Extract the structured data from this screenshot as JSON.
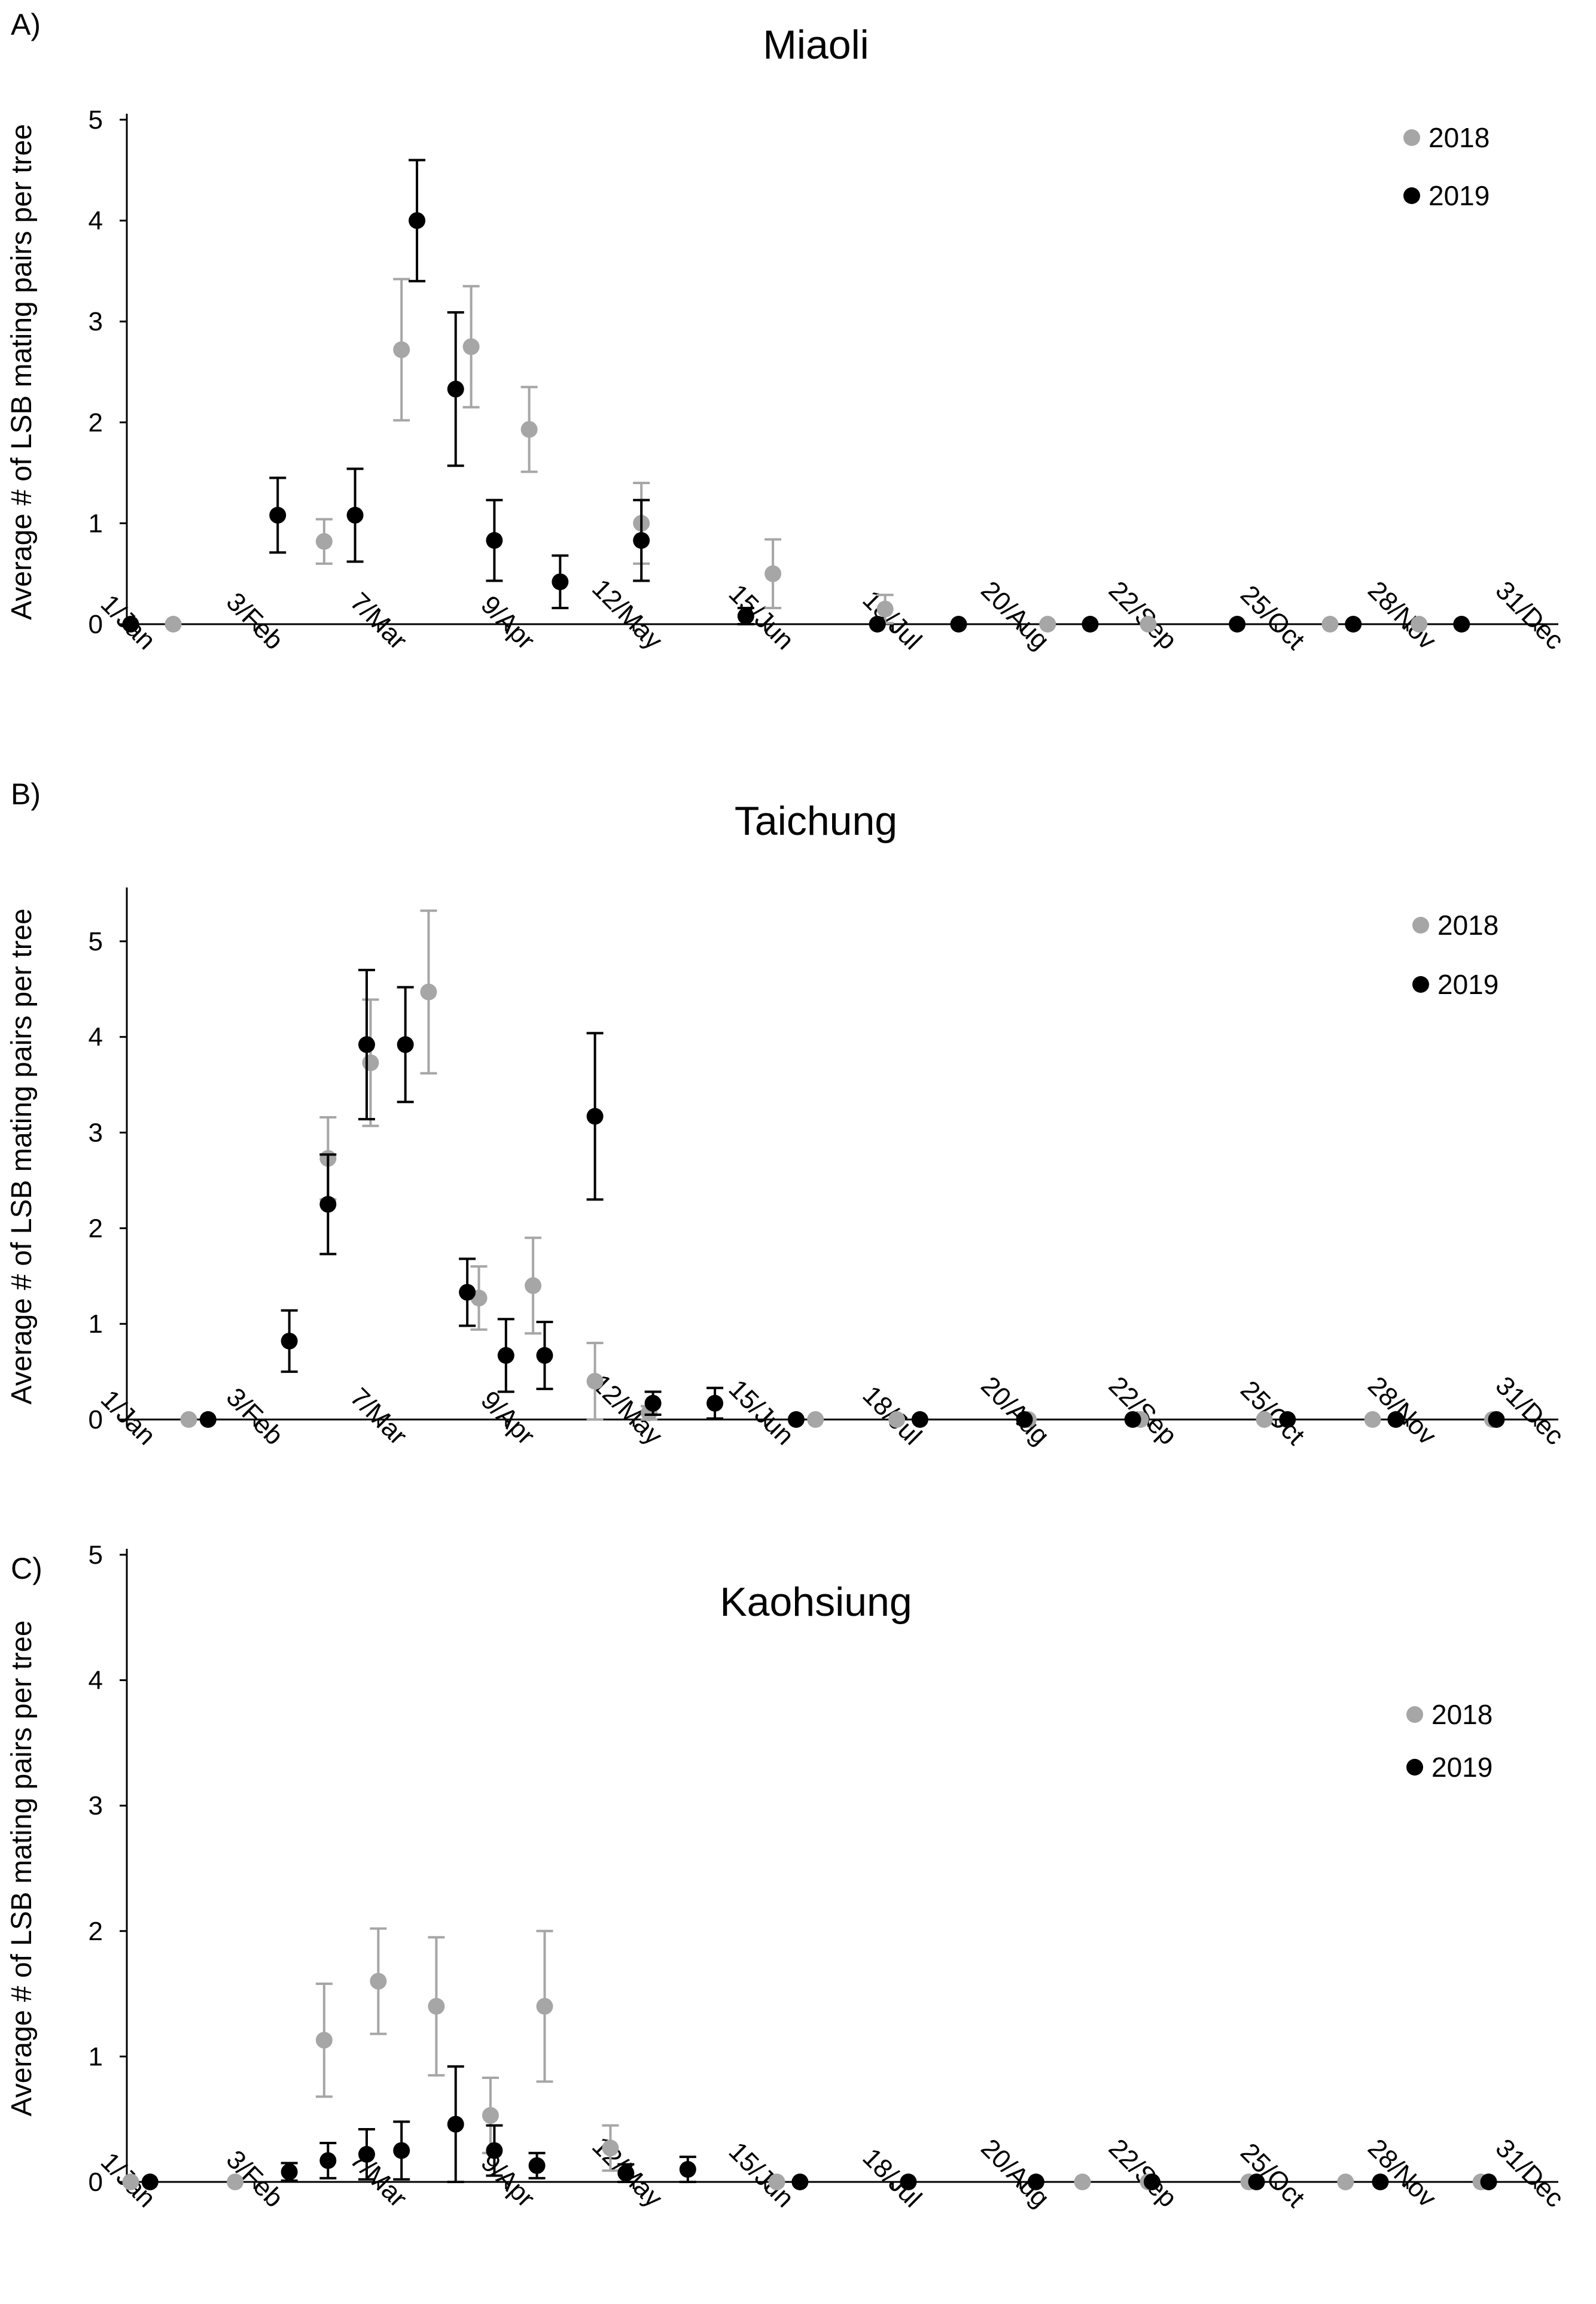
{
  "figure": {
    "colors": {
      "2018": "#a6a6a6",
      "2019": "#000000",
      "axis": "#000000"
    }
  },
  "chart_data": [
    {
      "type": "scatter",
      "panel": "A)",
      "title": "Miaoli",
      "xlabel": "",
      "ylabel": "Average # of LSB mating pairs per tree",
      "xlim": [
        0,
        370
      ],
      "ylim": [
        0,
        5
      ],
      "yticks": [
        0,
        1,
        2,
        3,
        4,
        5
      ],
      "xtick_positions": [
        0,
        33,
        65,
        98,
        131,
        165,
        198,
        231,
        264,
        297,
        331,
        364
      ],
      "xtick_labels": [
        "1/Jan",
        "3/Feb",
        "7/Mar",
        "9/Apr",
        "12/May",
        "15/Jun",
        "18/Jul",
        "20/Aug",
        "22/Sep",
        "25/Oct",
        "28/Nov",
        "31/Dec"
      ],
      "legend": [
        "2018",
        "2019"
      ],
      "legend_position": "top-right",
      "series": [
        {
          "name": "2018",
          "points": [
            {
              "x": 12,
              "y": 0,
              "err": 0
            },
            {
              "x": 51,
              "y": 0.82,
              "err": 0.22
            },
            {
              "x": 71,
              "y": 2.72,
              "err": 0.7
            },
            {
              "x": 89,
              "y": 2.75,
              "err": 0.6
            },
            {
              "x": 104,
              "y": 1.93,
              "err": 0.42
            },
            {
              "x": 133,
              "y": 1.0,
              "err": 0.4
            },
            {
              "x": 167,
              "y": 0.5,
              "err": 0.34
            },
            {
              "x": 196,
              "y": 0.15,
              "err": 0.14
            },
            {
              "x": 238,
              "y": 0,
              "err": 0
            },
            {
              "x": 264,
              "y": 0,
              "err": 0
            },
            {
              "x": 311,
              "y": 0,
              "err": 0
            },
            {
              "x": 334,
              "y": 0,
              "err": 0
            }
          ]
        },
        {
          "name": "2019",
          "points": [
            {
              "x": 1,
              "y": 0,
              "err": 0
            },
            {
              "x": 39,
              "y": 1.08,
              "err": 0.37
            },
            {
              "x": 59,
              "y": 1.08,
              "err": 0.46
            },
            {
              "x": 75,
              "y": 4.0,
              "err": 0.6
            },
            {
              "x": 85,
              "y": 2.33,
              "err": 0.76
            },
            {
              "x": 95,
              "y": 0.83,
              "err": 0.4
            },
            {
              "x": 112,
              "y": 0.42,
              "err": 0.26
            },
            {
              "x": 133,
              "y": 0.83,
              "err": 0.4
            },
            {
              "x": 160,
              "y": 0.08,
              "err": 0.08
            },
            {
              "x": 194,
              "y": 0,
              "err": 0
            },
            {
              "x": 215,
              "y": 0,
              "err": 0
            },
            {
              "x": 249,
              "y": 0,
              "err": 0
            },
            {
              "x": 287,
              "y": 0,
              "err": 0
            },
            {
              "x": 317,
              "y": 0,
              "err": 0
            },
            {
              "x": 345,
              "y": 0,
              "err": 0
            }
          ]
        }
      ]
    },
    {
      "type": "scatter",
      "panel": "B)",
      "title": "Taichung",
      "xlabel": "",
      "ylabel": "Average # of LSB mating pairs per tree",
      "xlim": [
        0,
        370
      ],
      "ylim": [
        0,
        5.5
      ],
      "yticks": [
        0,
        1,
        2,
        3,
        4,
        5
      ],
      "xtick_positions": [
        0,
        33,
        65,
        98,
        131,
        165,
        198,
        231,
        264,
        297,
        331,
        364
      ],
      "xtick_labels": [
        "1/Jan",
        "3/Feb",
        "7/Mar",
        "9/Apr",
        "12/May",
        "15/Jun",
        "18/Jul",
        "20/Aug",
        "22/Sep",
        "25/Oct",
        "28/Nov",
        "31/Dec"
      ],
      "legend": [
        "2018",
        "2019"
      ],
      "legend_position": "top-right",
      "series": [
        {
          "name": "2018",
          "points": [
            {
              "x": 16,
              "y": 0,
              "err": 0
            },
            {
              "x": 52,
              "y": 2.73,
              "err": 0.43
            },
            {
              "x": 63,
              "y": 3.73,
              "err": 0.66
            },
            {
              "x": 78,
              "y": 4.47,
              "err": 0.85
            },
            {
              "x": 91,
              "y": 1.27,
              "err": 0.33
            },
            {
              "x": 105,
              "y": 1.4,
              "err": 0.5
            },
            {
              "x": 121,
              "y": 0.4,
              "err": 0.4
            },
            {
              "x": 135,
              "y": 0.07,
              "err": 0.07
            },
            {
              "x": 178,
              "y": 0,
              "err": 0
            },
            {
              "x": 199,
              "y": 0,
              "err": 0
            },
            {
              "x": 233,
              "y": 0,
              "err": 0
            },
            {
              "x": 262,
              "y": 0,
              "err": 0
            },
            {
              "x": 294,
              "y": 0,
              "err": 0
            },
            {
              "x": 322,
              "y": 0,
              "err": 0
            },
            {
              "x": 353,
              "y": 0,
              "err": 0
            }
          ]
        },
        {
          "name": "2019",
          "points": [
            {
              "x": 21,
              "y": 0,
              "err": 0
            },
            {
              "x": 42,
              "y": 0.82,
              "err": 0.32
            },
            {
              "x": 52,
              "y": 2.25,
              "err": 0.52
            },
            {
              "x": 62,
              "y": 3.92,
              "err": 0.78
            },
            {
              "x": 72,
              "y": 3.92,
              "err": 0.6
            },
            {
              "x": 88,
              "y": 1.33,
              "err": 0.35
            },
            {
              "x": 98,
              "y": 0.67,
              "err": 0.38
            },
            {
              "x": 108,
              "y": 0.67,
              "err": 0.35
            },
            {
              "x": 121,
              "y": 3.17,
              "err": 0.87
            },
            {
              "x": 136,
              "y": 0.17,
              "err": 0.12
            },
            {
              "x": 152,
              "y": 0.17,
              "err": 0.16
            },
            {
              "x": 173,
              "y": 0,
              "err": 0
            },
            {
              "x": 205,
              "y": 0,
              "err": 0
            },
            {
              "x": 232,
              "y": 0,
              "err": 0
            },
            {
              "x": 260,
              "y": 0,
              "err": 0
            },
            {
              "x": 300,
              "y": 0,
              "err": 0
            },
            {
              "x": 328,
              "y": 0,
              "err": 0
            },
            {
              "x": 354,
              "y": 0,
              "err": 0
            }
          ]
        }
      ]
    },
    {
      "type": "scatter",
      "panel": "C)",
      "title": "Kaohsiung",
      "xlabel": "",
      "ylabel": "Average # of LSB mating pairs per tree",
      "xlim": [
        0,
        370
      ],
      "ylim": [
        0,
        5
      ],
      "yticks": [
        0,
        1,
        2,
        3,
        4,
        5
      ],
      "xtick_positions": [
        0,
        33,
        65,
        98,
        131,
        165,
        198,
        231,
        264,
        297,
        331,
        364
      ],
      "xtick_labels": [
        "1/Jan",
        "3/Feb",
        "7/Mar",
        "9/Apr",
        "12/May",
        "15/Jun",
        "18/Jul",
        "20/Aug",
        "22/Sep",
        "25/Oct",
        "28/Nov",
        "31/Dec"
      ],
      "legend": [
        "2018",
        "2019"
      ],
      "legend_position": "top-right",
      "series": [
        {
          "name": "2018",
          "points": [
            {
              "x": 1,
              "y": 0,
              "err": 0
            },
            {
              "x": 28,
              "y": 0,
              "err": 0
            },
            {
              "x": 51,
              "y": 1.13,
              "err": 0.45
            },
            {
              "x": 65,
              "y": 1.6,
              "err": 0.42
            },
            {
              "x": 80,
              "y": 1.4,
              "err": 0.55
            },
            {
              "x": 94,
              "y": 0.53,
              "err": 0.3
            },
            {
              "x": 108,
              "y": 1.4,
              "err": 0.6
            },
            {
              "x": 125,
              "y": 0.27,
              "err": 0.18
            },
            {
              "x": 168,
              "y": 0,
              "err": 0
            },
            {
              "x": 202,
              "y": 0,
              "err": 0
            },
            {
              "x": 247,
              "y": 0,
              "err": 0
            },
            {
              "x": 264,
              "y": 0,
              "err": 0
            },
            {
              "x": 290,
              "y": 0,
              "err": 0
            },
            {
              "x": 315,
              "y": 0,
              "err": 0
            },
            {
              "x": 350,
              "y": 0,
              "err": 0
            }
          ]
        },
        {
          "name": "2019",
          "points": [
            {
              "x": 6,
              "y": 0,
              "err": 0
            },
            {
              "x": 42,
              "y": 0.08,
              "err": 0.07
            },
            {
              "x": 52,
              "y": 0.17,
              "err": 0.14
            },
            {
              "x": 62,
              "y": 0.22,
              "err": 0.2
            },
            {
              "x": 71,
              "y": 0.25,
              "err": 0.23
            },
            {
              "x": 85,
              "y": 0.46,
              "err": 0.46
            },
            {
              "x": 95,
              "y": 0.25,
              "err": 0.2
            },
            {
              "x": 106,
              "y": 0.13,
              "err": 0.1
            },
            {
              "x": 129,
              "y": 0.07,
              "err": 0.07
            },
            {
              "x": 145,
              "y": 0.1,
              "err": 0.1
            },
            {
              "x": 174,
              "y": 0,
              "err": 0
            },
            {
              "x": 202,
              "y": 0,
              "err": 0
            },
            {
              "x": 235,
              "y": 0,
              "err": 0
            },
            {
              "x": 265,
              "y": 0,
              "err": 0
            },
            {
              "x": 292,
              "y": 0,
              "err": 0
            },
            {
              "x": 324,
              "y": 0,
              "err": 0
            },
            {
              "x": 352,
              "y": 0,
              "err": 0
            }
          ]
        }
      ]
    }
  ]
}
